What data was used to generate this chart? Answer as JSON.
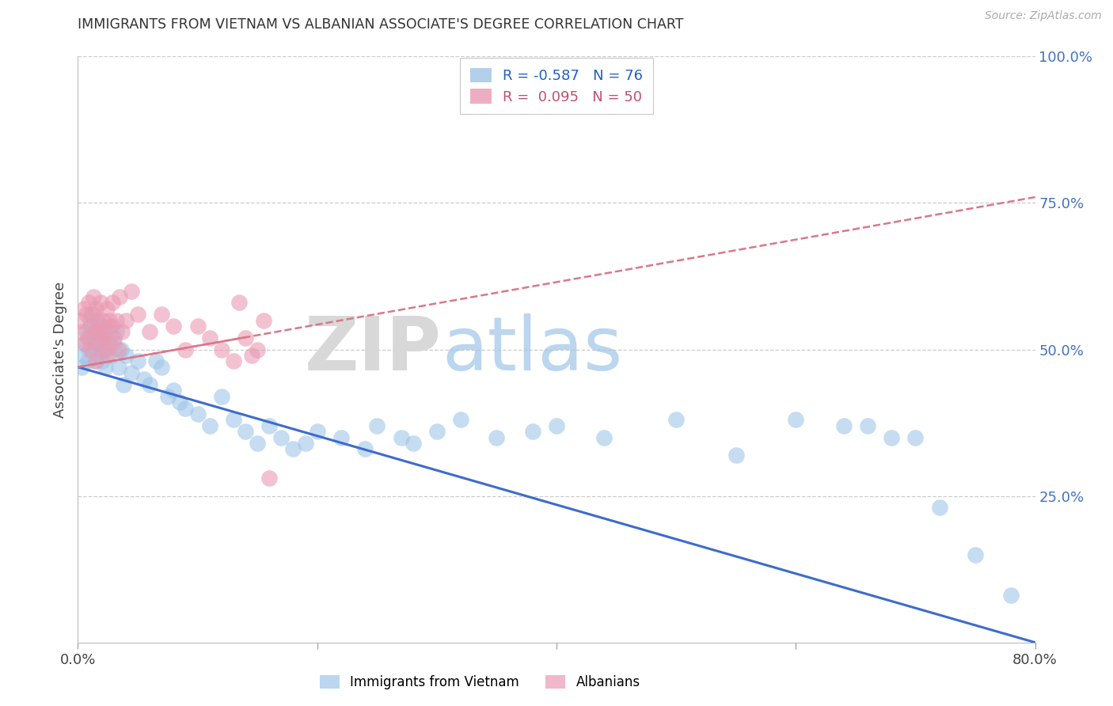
{
  "title": "IMMIGRANTS FROM VIETNAM VS ALBANIAN ASSOCIATE'S DEGREE CORRELATION CHART",
  "source": "Source: ZipAtlas.com",
  "ylabel": "Associate's Degree",
  "xlim": [
    0,
    80
  ],
  "ylim": [
    0,
    100
  ],
  "legend_r_vietnam": "-0.587",
  "legend_n_vietnam": "76",
  "legend_r_albanian": "0.095",
  "legend_n_albanian": "50",
  "legend_label_vietnam": "Immigrants from Vietnam",
  "legend_label_albanian": "Albanians",
  "blue_color": "#9fc5e8",
  "pink_color": "#ea9ab2",
  "blue_line_color": "#3d6bce",
  "pink_line_color": "#d9788a",
  "right_tick_color": "#4472c4",
  "grid_color": "#cccccc",
  "vietnam_x": [
    0.3,
    0.5,
    0.6,
    0.7,
    0.8,
    0.9,
    1.0,
    1.0,
    1.1,
    1.2,
    1.3,
    1.3,
    1.4,
    1.5,
    1.5,
    1.6,
    1.7,
    1.8,
    1.9,
    2.0,
    2.0,
    2.1,
    2.2,
    2.3,
    2.4,
    2.5,
    2.6,
    2.8,
    3.0,
    3.2,
    3.4,
    3.6,
    3.8,
    4.0,
    4.5,
    5.0,
    5.5,
    6.0,
    6.5,
    7.0,
    7.5,
    8.0,
    8.5,
    9.0,
    10.0,
    11.0,
    12.0,
    13.0,
    14.0,
    15.0,
    16.0,
    17.0,
    18.0,
    19.0,
    20.0,
    22.0,
    24.0,
    25.0,
    27.0,
    28.0,
    30.0,
    32.0,
    35.0,
    38.0,
    40.0,
    44.0,
    50.0,
    55.0,
    60.0,
    64.0,
    66.0,
    68.0,
    70.0,
    72.0,
    75.0,
    78.0
  ],
  "vietnam_y": [
    47,
    49,
    51,
    53,
    48,
    50,
    52,
    55,
    56,
    54,
    50,
    52,
    48,
    53,
    55,
    51,
    49,
    53,
    50,
    52,
    48,
    54,
    51,
    47,
    50,
    52,
    54,
    49,
    51,
    53,
    47,
    50,
    44,
    49,
    46,
    48,
    45,
    44,
    48,
    47,
    42,
    43,
    41,
    40,
    39,
    37,
    42,
    38,
    36,
    34,
    37,
    35,
    33,
    34,
    36,
    35,
    33,
    37,
    35,
    34,
    36,
    38,
    35,
    36,
    37,
    35,
    38,
    32,
    38,
    37,
    37,
    35,
    35,
    23,
    15,
    8
  ],
  "albanian_x": [
    0.2,
    0.4,
    0.5,
    0.6,
    0.7,
    0.8,
    0.9,
    1.0,
    1.1,
    1.2,
    1.3,
    1.4,
    1.5,
    1.5,
    1.6,
    1.7,
    1.8,
    1.9,
    2.0,
    2.1,
    2.2,
    2.3,
    2.4,
    2.5,
    2.6,
    2.7,
    2.8,
    2.9,
    3.0,
    3.2,
    3.4,
    3.5,
    3.7,
    4.0,
    4.5,
    5.0,
    6.0,
    7.0,
    8.0,
    9.0,
    10.0,
    11.0,
    12.0,
    13.0,
    13.5,
    14.0,
    14.5,
    15.0,
    15.5,
    16.0
  ],
  "albanian_y": [
    55,
    53,
    57,
    51,
    56,
    52,
    58,
    54,
    50,
    56,
    59,
    53,
    57,
    48,
    55,
    51,
    53,
    58,
    52,
    55,
    50,
    53,
    57,
    49,
    55,
    51,
    54,
    58,
    52,
    55,
    50,
    59,
    53,
    55,
    60,
    56,
    53,
    56,
    54,
    50,
    54,
    52,
    50,
    48,
    58,
    52,
    49,
    50,
    55,
    28
  ],
  "blue_line": [
    0,
    47,
    80,
    0
  ],
  "pink_line": [
    0,
    47,
    80,
    76
  ],
  "pink_line_solid_end_x": 14,
  "pink_line_solid_end_y": 55
}
